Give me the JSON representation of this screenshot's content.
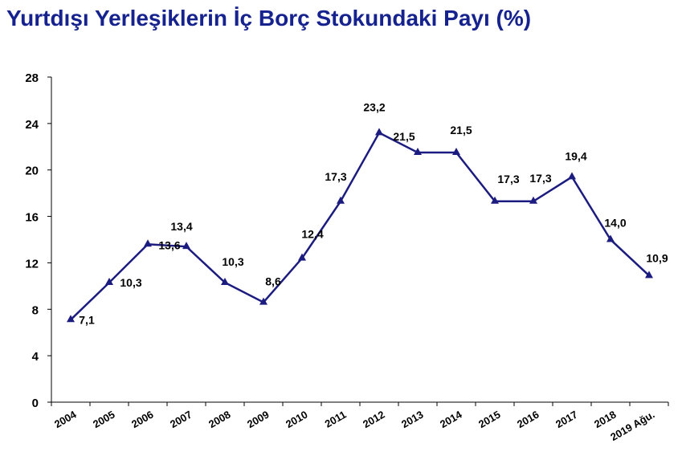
{
  "chart_data": {
    "type": "line",
    "title": "Yurtdışı Yerleşiklerin İç Borç Stokundaki Payı (%)",
    "categories": [
      "2004",
      "2005",
      "2006",
      "2007",
      "2008",
      "2009",
      "2010",
      "2011",
      "2012",
      "2013",
      "2014",
      "2015",
      "2016",
      "2017",
      "2018",
      "2019 Ağu."
    ],
    "values": [
      7.1,
      10.3,
      13.6,
      13.4,
      10.3,
      8.6,
      12.4,
      17.3,
      23.2,
      21.5,
      21.5,
      17.3,
      17.3,
      19.4,
      14.0,
      10.9
    ],
    "value_labels": [
      "7,1",
      "10,3",
      "13,6",
      "13,4",
      "10,3",
      "8,6",
      "12,4",
      "17,3",
      "23,2",
      "21,5",
      "21,5",
      "17,3",
      "17,3",
      "19,4",
      "14,0",
      "10,9"
    ],
    "color": "#1c1c80",
    "ylim": [
      0,
      28
    ],
    "yticks": [
      0,
      4,
      8,
      12,
      16,
      20,
      24,
      28
    ],
    "grid": false
  }
}
